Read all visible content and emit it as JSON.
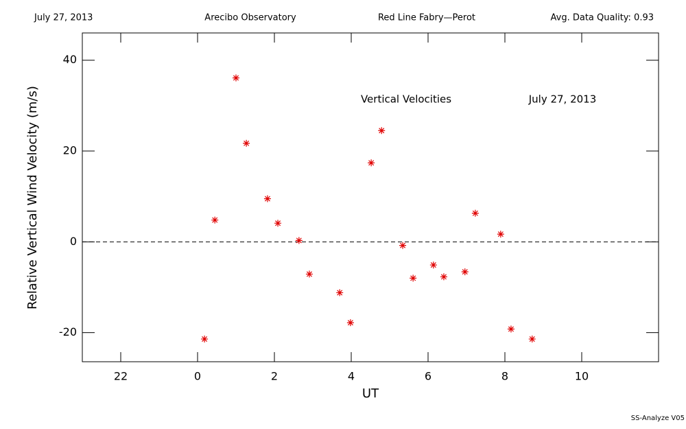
{
  "chart_data": {
    "type": "scatter",
    "header": [
      "July 27, 2013",
      "Arecibo Observatory",
      "Red Line Fabry—Perot",
      "Avg. Data Quality: 0.93"
    ],
    "annotations": [
      "Vertical Velocities",
      "July 27, 2013"
    ],
    "footer": "SS-Analyze V05",
    "xlabel": "UT",
    "ylabel": "Relative Vertical Wind Velocity (m/s)",
    "xlim": [
      -3,
      12
    ],
    "xticks": [
      {
        "value": -2,
        "label": "22"
      },
      0,
      2,
      4,
      6,
      8,
      10
    ],
    "ylim": [
      -26.4,
      46
    ],
    "yticks": [
      -20,
      0,
      20,
      40
    ],
    "reference_line": 0,
    "color": "#e00000",
    "x": [
      0.18,
      0.45,
      1.0,
      1.27,
      1.82,
      2.09,
      2.64,
      2.91,
      3.7,
      3.98,
      4.52,
      4.79,
      5.34,
      5.61,
      6.14,
      6.41,
      6.96,
      7.23,
      7.89,
      8.16,
      8.71
    ],
    "values": [
      -21.4,
      4.8,
      36.1,
      21.7,
      9.5,
      4.1,
      0.3,
      -7.1,
      -11.2,
      -17.8,
      17.4,
      24.5,
      -0.8,
      -8.0,
      -5.1,
      -7.7,
      -6.6,
      6.3,
      1.7,
      -19.2,
      -21.4
    ]
  }
}
